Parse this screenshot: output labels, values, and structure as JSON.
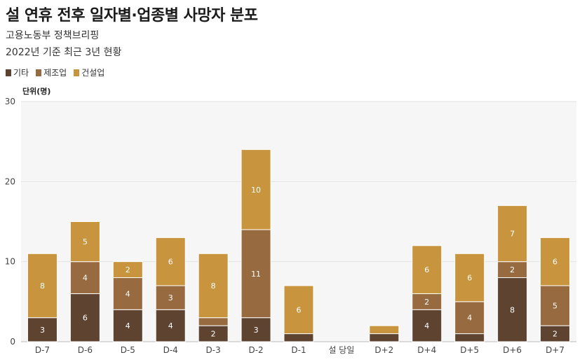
{
  "chart_data": {
    "type": "bar",
    "stacked": true,
    "title": "설 연휴 전후 일자별·업종별 사망자 분포",
    "subtitle": "고용노동부 정책브리핑",
    "subtitle2": "2022년 기준 최근 3년 현황",
    "ylabel": "단위(명)",
    "xlabel": "",
    "ylim": [
      0,
      30
    ],
    "yticks": [
      0,
      10,
      20,
      30
    ],
    "categories": [
      "D-7",
      "D-6",
      "D-5",
      "D-4",
      "D-3",
      "D-2",
      "D-1",
      "설 당일",
      "D+2",
      "D+4",
      "D+5",
      "D+6",
      "D+7"
    ],
    "series": [
      {
        "name": "기타",
        "color": "#5e4330",
        "values": [
          3,
          6,
          4,
          4,
          2,
          3,
          1,
          0,
          1,
          4,
          1,
          8,
          2
        ]
      },
      {
        "name": "제조업",
        "color": "#986a3f",
        "values": [
          0,
          4,
          4,
          3,
          1,
          11,
          0,
          0,
          0,
          2,
          4,
          2,
          5
        ]
      },
      {
        "name": "건설업",
        "color": "#c8943d",
        "values": [
          8,
          5,
          2,
          6,
          8,
          10,
          6,
          0,
          1,
          6,
          6,
          7,
          6
        ]
      }
    ],
    "data_labels": [
      [
        3,
        6,
        4,
        4,
        2,
        3,
        null,
        null,
        null,
        4,
        null,
        8,
        2
      ],
      [
        null,
        4,
        4,
        3,
        null,
        11,
        null,
        null,
        null,
        2,
        4,
        2,
        5
      ],
      [
        8,
        5,
        2,
        6,
        8,
        10,
        6,
        null,
        null,
        6,
        6,
        7,
        6
      ]
    ],
    "grid": true,
    "legend_position": "top-left"
  }
}
